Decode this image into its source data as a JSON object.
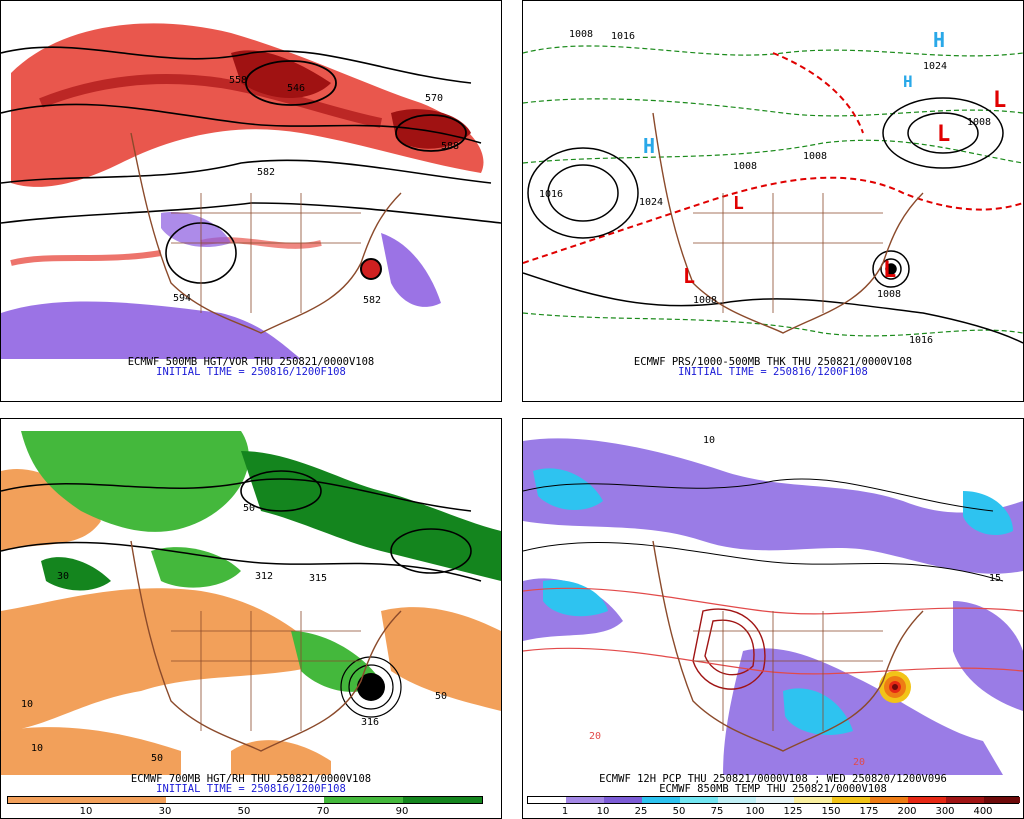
{
  "panels": [
    {
      "caption_line1": "ECMWF 500MB HGT/VOR THU 250821/0000V108",
      "caption_line2": "INITIAL TIME = 250816/1200F108",
      "contour_labels": [
        "558",
        "546",
        "570",
        "582",
        "588",
        "582",
        "594"
      ]
    },
    {
      "caption_line1": "ECMWF PRS/1000-500MB THK THU 250821/0000V108",
      "caption_line2": "INITIAL TIME = 250816/1200F108",
      "contour_labels": [
        "1008",
        "1016",
        "1008",
        "1016",
        "1024",
        "1008",
        "1008",
        "1024",
        "1008",
        "1008",
        "1016"
      ],
      "high_markers": [
        "H",
        "H",
        "H"
      ],
      "low_markers": [
        "L",
        "L",
        "L",
        "L",
        "L"
      ]
    },
    {
      "caption_line1": "ECMWF 700MB HGT/RH THU 250821/0000V108",
      "caption_line2": "INITIAL TIME = 250816/1200F108",
      "contour_labels": [
        "312",
        "315",
        "316",
        "50",
        "10",
        "10",
        "50",
        "30",
        "50"
      ],
      "colorbar_ticks": [
        "10",
        "30",
        "50",
        "70",
        "90"
      ],
      "colorbar_colors": [
        "#f2a05a",
        "#f2a05a",
        "#ffffff",
        "#ffffff",
        "#44b83c",
        "#14851e"
      ]
    },
    {
      "caption_line1": "ECMWF 12H PCP THU 250821/0000V108 ; WED 250820/1200V096",
      "caption_line2": "ECMWF 850MB TEMP THU 250821/0000V108",
      "contour_labels": [
        "20",
        "10",
        "15",
        "20"
      ],
      "colorbar_ticks": [
        "1",
        "10",
        "25",
        "50",
        "75",
        "100",
        "125",
        "150",
        "175",
        "200",
        "300",
        "400"
      ],
      "colorbar_colors": [
        "#ffffff",
        "#a488e6",
        "#7c5cd6",
        "#2ec3f0",
        "#72e6f2",
        "#c0f0f6",
        "#e6f5f8",
        "#faf0a0",
        "#f2c418",
        "#ee7c14",
        "#e62814",
        "#a01414",
        "#6e0a0a"
      ]
    }
  ]
}
